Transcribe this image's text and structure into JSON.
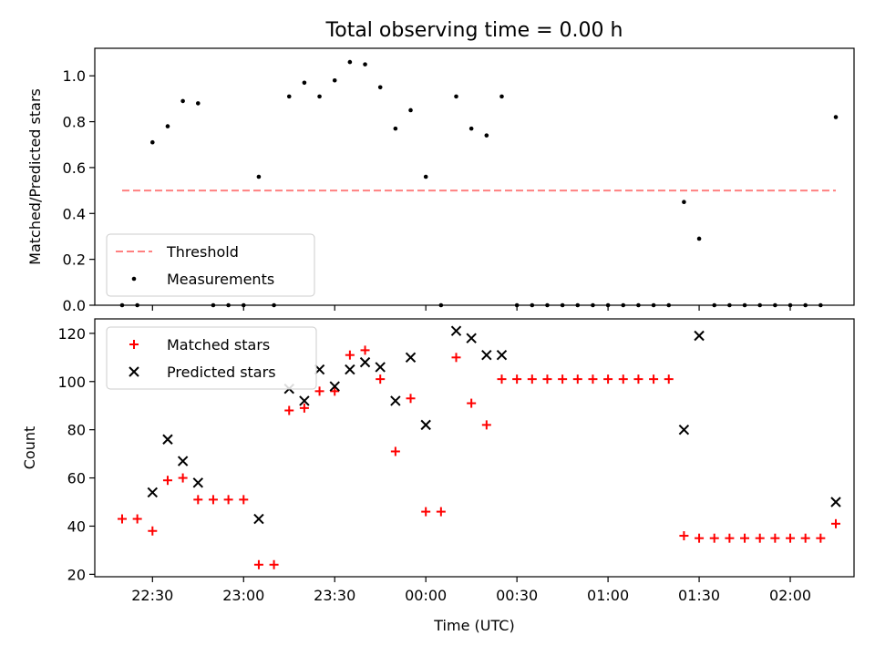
{
  "chart_data": [
    {
      "type": "scatter",
      "title": "Total observing time = 0.00 h",
      "xlabel": "",
      "ylabel": "Matched/Predicted stars",
      "ylim": [
        0,
        1.12
      ],
      "yticks": [
        "0.0",
        "0.2",
        "0.4",
        "0.6",
        "0.8",
        "1.0"
      ],
      "ytick_values": [
        0,
        0.2,
        0.4,
        0.6,
        0.8,
        1.0
      ],
      "legend_position": "lower-left",
      "threshold": {
        "name": "Threshold",
        "color": "#ff8080",
        "value": 0.5,
        "x_start": "22:20",
        "x_end": "02:15"
      },
      "series": [
        {
          "name": "Measurements",
          "color": "#000000",
          "marker": "dot",
          "points": [
            [
              "22:20",
              0
            ],
            [
              "22:25",
              0
            ],
            [
              "22:30",
              0.71
            ],
            [
              "22:35",
              0.78
            ],
            [
              "22:40",
              0.89
            ],
            [
              "22:45",
              0.88
            ],
            [
              "22:50",
              0
            ],
            [
              "22:55",
              0
            ],
            [
              "23:00",
              0
            ],
            [
              "23:05",
              0.56
            ],
            [
              "23:10",
              0
            ],
            [
              "23:15",
              0.91
            ],
            [
              "23:20",
              0.97
            ],
            [
              "23:25",
              0.91
            ],
            [
              "23:30",
              0.98
            ],
            [
              "23:35",
              1.06
            ],
            [
              "23:40",
              1.05
            ],
            [
              "23:45",
              0.95
            ],
            [
              "23:50",
              0.77
            ],
            [
              "23:55",
              0.85
            ],
            [
              "00:00",
              0.56
            ],
            [
              "00:05",
              0
            ],
            [
              "00:10",
              0.91
            ],
            [
              "00:15",
              0.77
            ],
            [
              "00:20",
              0.74
            ],
            [
              "00:25",
              0.91
            ],
            [
              "00:30",
              0
            ],
            [
              "00:35",
              0
            ],
            [
              "00:40",
              0
            ],
            [
              "00:45",
              0
            ],
            [
              "00:50",
              0
            ],
            [
              "00:55",
              0
            ],
            [
              "01:00",
              0
            ],
            [
              "01:05",
              0
            ],
            [
              "01:10",
              0
            ],
            [
              "01:15",
              0
            ],
            [
              "01:20",
              0
            ],
            [
              "01:25",
              0.45
            ],
            [
              "01:30",
              0.29
            ],
            [
              "01:35",
              0
            ],
            [
              "01:40",
              0
            ],
            [
              "01:45",
              0
            ],
            [
              "01:50",
              0
            ],
            [
              "01:55",
              0
            ],
            [
              "02:00",
              0
            ],
            [
              "02:05",
              0
            ],
            [
              "02:10",
              0
            ],
            [
              "02:15",
              0.82
            ]
          ]
        }
      ]
    },
    {
      "type": "scatter",
      "title": "",
      "xlabel": "Time (UTC)",
      "ylabel": "Count",
      "ylim": [
        19,
        126
      ],
      "yticks": [
        "20",
        "40",
        "60",
        "80",
        "100",
        "120"
      ],
      "ytick_values": [
        20,
        40,
        60,
        80,
        100,
        120
      ],
      "xticks": [
        "22:30",
        "23:00",
        "23:30",
        "00:00",
        "00:30",
        "01:00",
        "01:30",
        "02:00"
      ],
      "xlim": [
        "22:11",
        "02:21"
      ],
      "legend_position": "upper-left",
      "series": [
        {
          "name": "Matched stars",
          "color": "#ff0000",
          "marker": "plus",
          "points": [
            [
              "22:20",
              43
            ],
            [
              "22:25",
              43
            ],
            [
              "22:30",
              38
            ],
            [
              "22:35",
              59
            ],
            [
              "22:40",
              60
            ],
            [
              "22:45",
              51
            ],
            [
              "22:50",
              51
            ],
            [
              "22:55",
              51
            ],
            [
              "23:00",
              51
            ],
            [
              "23:05",
              24
            ],
            [
              "23:10",
              24
            ],
            [
              "23:15",
              88
            ],
            [
              "23:20",
              89
            ],
            [
              "23:25",
              96
            ],
            [
              "23:30",
              96
            ],
            [
              "23:35",
              111
            ],
            [
              "23:40",
              113
            ],
            [
              "23:45",
              101
            ],
            [
              "23:50",
              71
            ],
            [
              "23:55",
              93
            ],
            [
              "00:00",
              46
            ],
            [
              "00:05",
              46
            ],
            [
              "00:10",
              110
            ],
            [
              "00:15",
              91
            ],
            [
              "00:20",
              82
            ],
            [
              "00:25",
              101
            ],
            [
              "00:30",
              101
            ],
            [
              "00:35",
              101
            ],
            [
              "00:40",
              101
            ],
            [
              "00:45",
              101
            ],
            [
              "00:50",
              101
            ],
            [
              "00:55",
              101
            ],
            [
              "01:00",
              101
            ],
            [
              "01:05",
              101
            ],
            [
              "01:10",
              101
            ],
            [
              "01:15",
              101
            ],
            [
              "01:20",
              101
            ],
            [
              "01:25",
              36
            ],
            [
              "01:30",
              35
            ],
            [
              "01:35",
              35
            ],
            [
              "01:40",
              35
            ],
            [
              "01:45",
              35
            ],
            [
              "01:50",
              35
            ],
            [
              "01:55",
              35
            ],
            [
              "02:00",
              35
            ],
            [
              "02:05",
              35
            ],
            [
              "02:10",
              35
            ],
            [
              "02:15",
              41
            ]
          ]
        },
        {
          "name": "Predicted stars",
          "color": "#000000",
          "marker": "x",
          "points": [
            [
              "22:30",
              54
            ],
            [
              "22:35",
              76
            ],
            [
              "22:40",
              67
            ],
            [
              "22:45",
              58
            ],
            [
              "23:05",
              43
            ],
            [
              "23:15",
              97
            ],
            [
              "23:20",
              92
            ],
            [
              "23:25",
              105
            ],
            [
              "23:30",
              98
            ],
            [
              "23:35",
              105
            ],
            [
              "23:40",
              108
            ],
            [
              "23:45",
              106
            ],
            [
              "23:50",
              92
            ],
            [
              "23:55",
              110
            ],
            [
              "00:00",
              82
            ],
            [
              "00:10",
              121
            ],
            [
              "00:15",
              118
            ],
            [
              "00:20",
              111
            ],
            [
              "00:25",
              111
            ],
            [
              "01:25",
              80
            ],
            [
              "01:30",
              119
            ],
            [
              "02:15",
              50
            ]
          ]
        }
      ]
    }
  ]
}
